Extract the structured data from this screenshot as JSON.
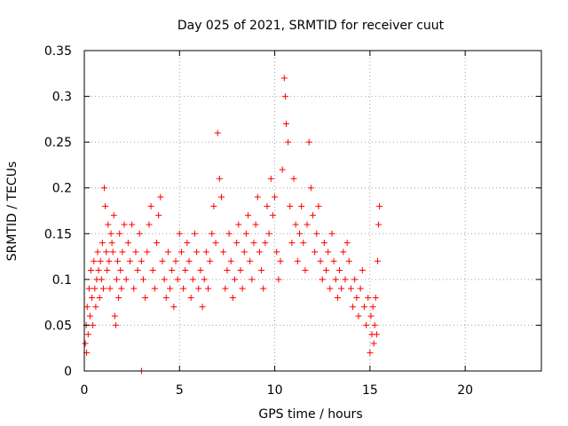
{
  "chart_data": {
    "type": "scatter",
    "title": "Day 025 of 2021, SRMTID for receiver cuut",
    "xlabel": "GPS time / hours",
    "ylabel": "SRMTID / TECUs",
    "xlim": [
      0,
      24
    ],
    "ylim": [
      0,
      0.35
    ],
    "xticks": [
      0,
      5,
      10,
      15,
      20
    ],
    "xtick_labels": [
      "0",
      "5",
      "10",
      "15",
      "20"
    ],
    "yticks": [
      0,
      0.05,
      0.1,
      0.15,
      0.2,
      0.25,
      0.3,
      0.35
    ],
    "ytick_labels": [
      "0",
      "0.05",
      "0.1",
      "0.15",
      "0.2",
      "0.25",
      "0.3",
      "0.35"
    ],
    "grid": true,
    "legend": "none",
    "marker": "plus",
    "marker_color": "#ff0000",
    "series": [
      {
        "points": [
          [
            0.05,
            0.03
          ],
          [
            0.1,
            0.05
          ],
          [
            0.12,
            0.02
          ],
          [
            0.15,
            0.07
          ],
          [
            0.2,
            0.04
          ],
          [
            0.25,
            0.09
          ],
          [
            0.3,
            0.06
          ],
          [
            0.35,
            0.11
          ],
          [
            0.4,
            0.08
          ],
          [
            0.45,
            0.05
          ],
          [
            0.5,
            0.12
          ],
          [
            0.55,
            0.09
          ],
          [
            0.6,
            0.07
          ],
          [
            0.65,
            0.1
          ],
          [
            0.7,
            0.13
          ],
          [
            0.75,
            0.11
          ],
          [
            0.8,
            0.08
          ],
          [
            0.85,
            0.12
          ],
          [
            0.9,
            0.1
          ],
          [
            0.95,
            0.14
          ],
          [
            1.0,
            0.09
          ],
          [
            1.05,
            0.2
          ],
          [
            1.1,
            0.18
          ],
          [
            1.15,
            0.13
          ],
          [
            1.2,
            0.11
          ],
          [
            1.25,
            0.16
          ],
          [
            1.3,
            0.12
          ],
          [
            1.35,
            0.09
          ],
          [
            1.4,
            0.15
          ],
          [
            1.45,
            0.14
          ],
          [
            1.5,
            0.13
          ],
          [
            1.55,
            0.17
          ],
          [
            1.6,
            0.06
          ],
          [
            1.65,
            0.05
          ],
          [
            1.7,
            0.1
          ],
          [
            1.75,
            0.12
          ],
          [
            1.8,
            0.08
          ],
          [
            1.85,
            0.15
          ],
          [
            1.9,
            0.11
          ],
          [
            1.95,
            0.09
          ],
          [
            2.0,
            0.13
          ],
          [
            2.1,
            0.16
          ],
          [
            2.2,
            0.1
          ],
          [
            2.3,
            0.14
          ],
          [
            2.4,
            0.12
          ],
          [
            2.5,
            0.16
          ],
          [
            2.6,
            0.09
          ],
          [
            2.7,
            0.13
          ],
          [
            2.8,
            0.11
          ],
          [
            2.9,
            0.15
          ],
          [
            3.0,
            0.12
          ],
          [
            3.0,
            0.0
          ],
          [
            3.1,
            0.1
          ],
          [
            3.2,
            0.08
          ],
          [
            3.3,
            0.13
          ],
          [
            3.4,
            0.16
          ],
          [
            3.5,
            0.18
          ],
          [
            3.6,
            0.11
          ],
          [
            3.7,
            0.09
          ],
          [
            3.8,
            0.14
          ],
          [
            3.9,
            0.17
          ],
          [
            4.0,
            0.19
          ],
          [
            4.1,
            0.12
          ],
          [
            4.2,
            0.1
          ],
          [
            4.3,
            0.08
          ],
          [
            4.4,
            0.13
          ],
          [
            4.5,
            0.09
          ],
          [
            4.6,
            0.11
          ],
          [
            4.7,
            0.07
          ],
          [
            4.8,
            0.12
          ],
          [
            4.9,
            0.1
          ],
          [
            5.0,
            0.15
          ],
          [
            5.1,
            0.13
          ],
          [
            5.2,
            0.09
          ],
          [
            5.3,
            0.11
          ],
          [
            5.4,
            0.14
          ],
          [
            5.5,
            0.12
          ],
          [
            5.6,
            0.08
          ],
          [
            5.7,
            0.1
          ],
          [
            5.8,
            0.15
          ],
          [
            5.9,
            0.13
          ],
          [
            6.0,
            0.09
          ],
          [
            6.1,
            0.11
          ],
          [
            6.2,
            0.07
          ],
          [
            6.3,
            0.1
          ],
          [
            6.4,
            0.13
          ],
          [
            6.5,
            0.09
          ],
          [
            6.6,
            0.12
          ],
          [
            6.7,
            0.15
          ],
          [
            6.8,
            0.18
          ],
          [
            6.9,
            0.14
          ],
          [
            7.0,
            0.26
          ],
          [
            7.1,
            0.21
          ],
          [
            7.2,
            0.19
          ],
          [
            7.3,
            0.13
          ],
          [
            7.4,
            0.09
          ],
          [
            7.5,
            0.11
          ],
          [
            7.6,
            0.15
          ],
          [
            7.7,
            0.12
          ],
          [
            7.8,
            0.08
          ],
          [
            7.9,
            0.1
          ],
          [
            8.0,
            0.14
          ],
          [
            8.1,
            0.16
          ],
          [
            8.2,
            0.11
          ],
          [
            8.3,
            0.09
          ],
          [
            8.4,
            0.13
          ],
          [
            8.5,
            0.15
          ],
          [
            8.6,
            0.17
          ],
          [
            8.7,
            0.12
          ],
          [
            8.8,
            0.1
          ],
          [
            8.9,
            0.14
          ],
          [
            9.0,
            0.16
          ],
          [
            9.1,
            0.19
          ],
          [
            9.2,
            0.13
          ],
          [
            9.3,
            0.11
          ],
          [
            9.4,
            0.09
          ],
          [
            9.5,
            0.14
          ],
          [
            9.6,
            0.18
          ],
          [
            9.7,
            0.15
          ],
          [
            9.8,
            0.21
          ],
          [
            9.9,
            0.17
          ],
          [
            10.0,
            0.19
          ],
          [
            10.1,
            0.13
          ],
          [
            10.2,
            0.1
          ],
          [
            10.3,
            0.12
          ],
          [
            10.4,
            0.22
          ],
          [
            10.5,
            0.32
          ],
          [
            10.55,
            0.3
          ],
          [
            10.6,
            0.27
          ],
          [
            10.7,
            0.25
          ],
          [
            10.8,
            0.18
          ],
          [
            10.9,
            0.14
          ],
          [
            11.0,
            0.21
          ],
          [
            11.1,
            0.16
          ],
          [
            11.2,
            0.12
          ],
          [
            11.3,
            0.15
          ],
          [
            11.4,
            0.18
          ],
          [
            11.5,
            0.14
          ],
          [
            11.6,
            0.11
          ],
          [
            11.7,
            0.16
          ],
          [
            11.8,
            0.25
          ],
          [
            11.9,
            0.2
          ],
          [
            12.0,
            0.17
          ],
          [
            12.1,
            0.13
          ],
          [
            12.2,
            0.15
          ],
          [
            12.3,
            0.18
          ],
          [
            12.4,
            0.12
          ],
          [
            12.5,
            0.1
          ],
          [
            12.6,
            0.14
          ],
          [
            12.7,
            0.11
          ],
          [
            12.8,
            0.13
          ],
          [
            12.9,
            0.09
          ],
          [
            13.0,
            0.15
          ],
          [
            13.1,
            0.12
          ],
          [
            13.2,
            0.1
          ],
          [
            13.3,
            0.08
          ],
          [
            13.4,
            0.11
          ],
          [
            13.5,
            0.09
          ],
          [
            13.6,
            0.13
          ],
          [
            13.7,
            0.1
          ],
          [
            13.8,
            0.14
          ],
          [
            13.9,
            0.12
          ],
          [
            14.0,
            0.09
          ],
          [
            14.1,
            0.07
          ],
          [
            14.2,
            0.1
          ],
          [
            14.3,
            0.08
          ],
          [
            14.4,
            0.06
          ],
          [
            14.5,
            0.09
          ],
          [
            14.6,
            0.11
          ],
          [
            14.7,
            0.07
          ],
          [
            14.8,
            0.05
          ],
          [
            14.9,
            0.08
          ],
          [
            15.0,
            0.02
          ],
          [
            15.05,
            0.06
          ],
          [
            15.1,
            0.04
          ],
          [
            15.15,
            0.07
          ],
          [
            15.2,
            0.03
          ],
          [
            15.25,
            0.05
          ],
          [
            15.3,
            0.08
          ],
          [
            15.35,
            0.04
          ],
          [
            15.4,
            0.12
          ],
          [
            15.45,
            0.16
          ],
          [
            15.5,
            0.18
          ]
        ]
      }
    ]
  }
}
